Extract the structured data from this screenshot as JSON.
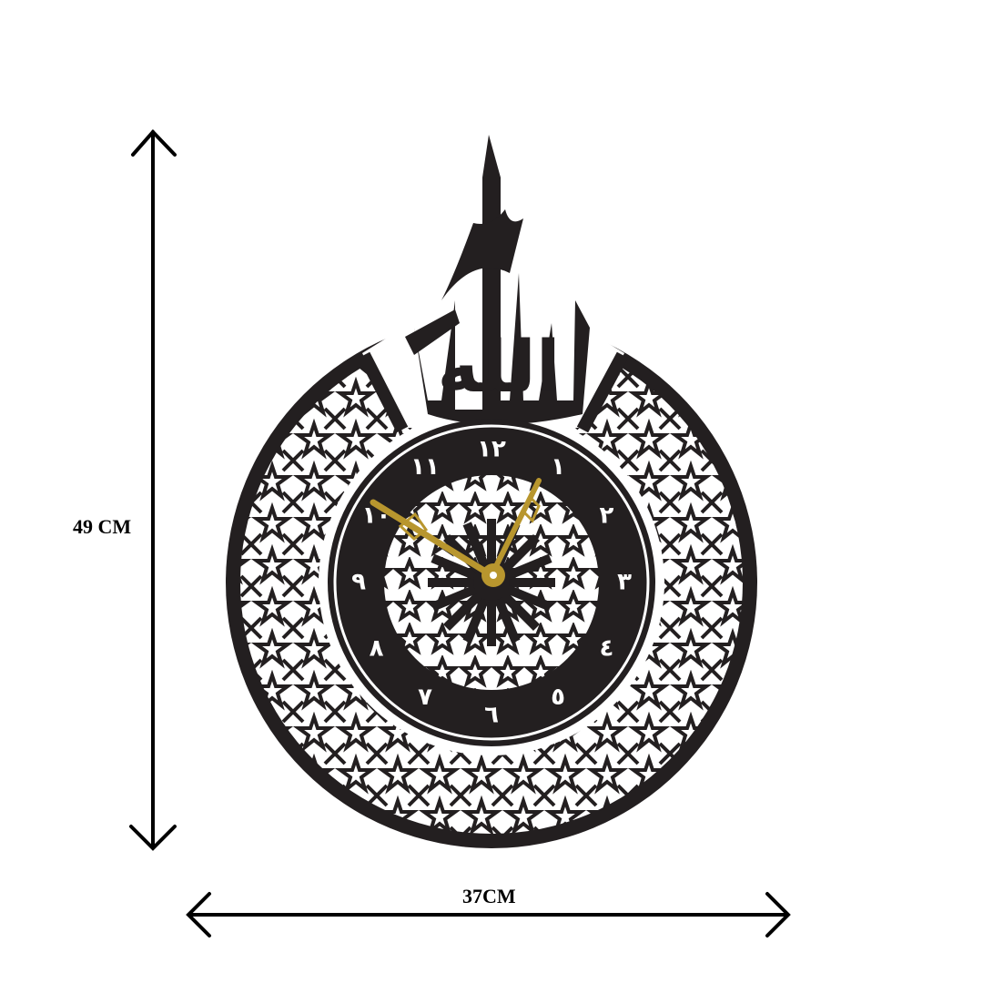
{
  "dimensions": {
    "height_label": "49 CM",
    "width_label": "37CM"
  },
  "clock": {
    "calligraphy": "الله",
    "numerals": [
      "١٢",
      "١",
      "٢",
      "٣",
      "٤",
      "٥",
      "٦",
      "٧",
      "٨",
      "٩",
      "١٠",
      "١١"
    ],
    "body_color": "#231f20",
    "hands_color": "#b8962e"
  }
}
